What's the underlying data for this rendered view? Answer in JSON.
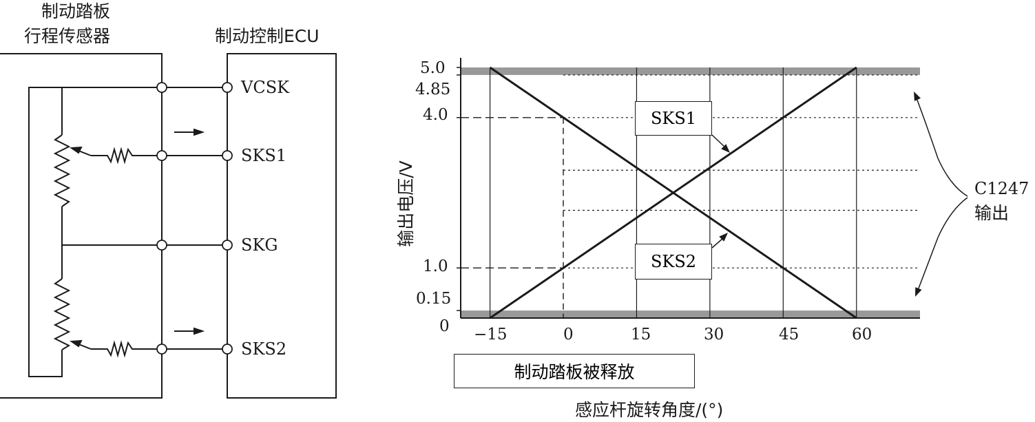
{
  "circuit": {
    "sensor_title_line1": "制动踏板",
    "sensor_title_line2": "行程传感器",
    "ecu_title": "制动控制ECU",
    "pins": [
      "VCSK",
      "SKS1",
      "SKG",
      "SKS2"
    ]
  },
  "chart_data": {
    "type": "line",
    "xlabel": "感应杆旋转角度/(°)",
    "ylabel": "输出电压/V",
    "x_ticks": [
      "−15",
      "0",
      "15",
      "30",
      "45",
      "60"
    ],
    "y_ticks": [
      "5.0",
      "4.85",
      "4.0",
      "1.0",
      "0.15",
      "0"
    ],
    "xlim": [
      -21,
      73
    ],
    "ylim": [
      0,
      5.0
    ],
    "series": [
      {
        "name": "SKS1",
        "x": [
          -15,
          0,
          60
        ],
        "y": [
          0.0,
          1.0,
          5.0
        ]
      },
      {
        "name": "SKS2",
        "x": [
          -15,
          0,
          60
        ],
        "y": [
          5.0,
          4.0,
          0.0
        ]
      }
    ],
    "shaded_bands": [
      {
        "from": 4.85,
        "to": 5.0
      },
      {
        "from": 0,
        "to": 0.15
      }
    ],
    "annotations": {
      "fault_label_line1": "C1247",
      "fault_label_line2": "输出",
      "released_label": "制动踏板被释放"
    }
  }
}
